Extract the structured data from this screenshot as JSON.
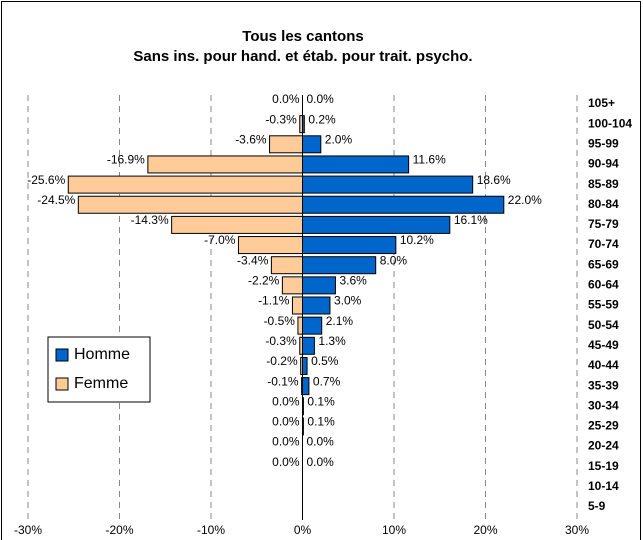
{
  "chart_data": {
    "type": "bar",
    "orientation": "horizontal",
    "title": "Tous les cantons",
    "subtitle": "Sans ins. pour hand. et étab. pour trait. psycho.",
    "categories": [
      "105+",
      "100-104",
      "95-99",
      "90-94",
      "85-89",
      "80-84",
      "75-79",
      "70-74",
      "65-69",
      "60-64",
      "55-59",
      "50-54",
      "45-49",
      "40-44",
      "35-39",
      "30-34",
      "25-29",
      "20-24",
      "15-19",
      "10-14",
      "5-9"
    ],
    "series": [
      {
        "name": "Homme",
        "color": "#0066cc",
        "values": [
          0.0,
          0.2,
          2.0,
          11.6,
          18.6,
          22.0,
          16.1,
          10.2,
          8.0,
          3.6,
          3.0,
          2.1,
          1.3,
          0.5,
          0.7,
          0.1,
          0.1,
          0.0,
          0.0,
          null,
          null
        ],
        "value_labels": [
          "0.0%",
          "0.2%",
          "2.0%",
          "11.6%",
          "18.6%",
          "22.0%",
          "16.1%",
          "10.2%",
          "8.0%",
          "3.6%",
          "3.0%",
          "2.1%",
          "1.3%",
          "0.5%",
          "0.7%",
          "0.1%",
          "0.1%",
          "0.0%",
          "0.0%",
          null,
          null
        ]
      },
      {
        "name": "Femme",
        "color": "#ffcc99",
        "values": [
          0.0,
          -0.3,
          -3.6,
          -16.9,
          -25.6,
          -24.5,
          -14.3,
          -7.0,
          -3.4,
          -2.2,
          -1.1,
          -0.5,
          -0.3,
          -0.2,
          -0.1,
          0.0,
          0.0,
          0.0,
          0.0,
          null,
          null
        ],
        "value_labels": [
          "0.0%",
          "-0.3%",
          "-3.6%",
          "-16.9%",
          "-25.6%",
          "-24.5%",
          "-14.3%",
          "-7.0%",
          "-3.4%",
          "-2.2%",
          "-1.1%",
          "-0.5%",
          "-0.3%",
          "-0.2%",
          "-0.1%",
          "0.0%",
          "0.0%",
          "0.0%",
          "0.0%",
          null,
          null
        ]
      }
    ],
    "xlim": [
      -30,
      30
    ],
    "xticks": [
      {
        "value": -30,
        "label": "-30%"
      },
      {
        "value": -20,
        "label": "-20%"
      },
      {
        "value": -10,
        "label": "-10%"
      },
      {
        "value": 0,
        "label": "0%"
      },
      {
        "value": 10,
        "label": "10%"
      },
      {
        "value": 20,
        "label": "20%"
      },
      {
        "value": 30,
        "label": "30%"
      }
    ],
    "grid": true,
    "legend": "left"
  }
}
